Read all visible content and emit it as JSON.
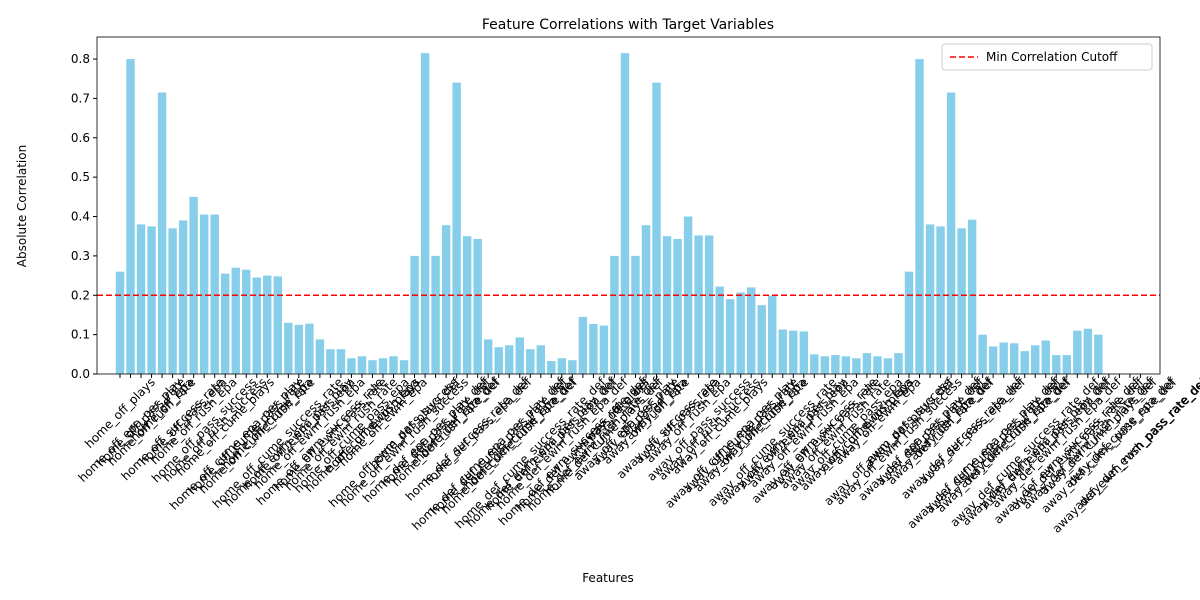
{
  "chart_data": {
    "type": "bar",
    "title": "Feature Correlations with Target Variables",
    "x_label": "Features",
    "y_label": "Absolute Correlation",
    "color": "#87ceeb",
    "categories": [
      "home_off_plays",
      "home_off_epa_per_play",
      "home_off_pass_rate",
      "home_off_rush_rate",
      "home_off_epa",
      "home_off_success_rate",
      "home_off_pass_epa",
      "home_off_rush_epa",
      "home_off_pass_success",
      "home_off_rush_success",
      "home_off_cume_plays",
      "home_off_cume_epa_per_play",
      "home_off_cume_pass_rate",
      "home_off_cume_rush_rate",
      "home_off_cume_epa",
      "home_off_cume_success_rate",
      "home_off_ewm_epa_per_play",
      "home_off_ewm_pass_epa",
      "home_off_ewm_rush_epa",
      "home_off_ewm_success_rate",
      "home_off_ewm_pass_rate",
      "home_off_ewm_rush_rate",
      "home_off_cume_pass_epa",
      "home_off_cume_rush_epa",
      "home_off_ewm_plays",
      "home_off_ewm_epa",
      "home_off_ewm_pass_success",
      "home_off_ewm_rush_success",
      "home_def_plays_def",
      "home_def_epa_per_play_def",
      "home_def_pass_rate_def",
      "home_def_rush_rate_def",
      "home_def_epa_def",
      "home_def_success_rate_def",
      "home_def_pass_epa_def",
      "home_def_cume_epa_per_play_def",
      "home_def_cume_pass_rate_def",
      "home_def_cume_rush_rate_def",
      "home_def_cume_epa_def",
      "home_def_cume_success_rate_def",
      "home_def_ewm_epa_per_play_def",
      "home_def_ewm_pass_epa_def",
      "home_def_ewm_rush_epa_def",
      "home_def_ewm_success_rate_def",
      "home_def_ewm_pass_rate_def",
      "home_def_ewm_rush_rate_def",
      "home_def_cume_plays_def",
      "away_off_plays",
      "away_off_epa_per_play",
      "away_off_pass_rate",
      "away_off_rush_rate",
      "away_off_epa",
      "away_off_success_rate",
      "away_off_pass_epa",
      "away_off_rush_epa",
      "away_off_pass_success",
      "away_off_rush_success",
      "away_off_cume_plays",
      "away_off_cume_epa_per_play",
      "away_off_cume_pass_rate",
      "away_off_cume_rush_rate",
      "away_off_cume_epa",
      "away_off_cume_success_rate",
      "away_off_ewm_epa_per_play",
      "away_off_ewm_pass_epa",
      "away_off_ewm_rush_epa",
      "away_off_ewm_success_rate",
      "away_off_ewm_pass_rate",
      "away_off_ewm_rush_rate",
      "away_off_cume_pass_epa",
      "away_off_cume_rush_epa",
      "away_off_ewm_plays",
      "away_off_ewm_epa",
      "away_off_ewm_pass_success",
      "away_off_ewm_rush_success",
      "away_def_plays_def",
      "away_def_epa_per_play_def",
      "away_def_pass_rate_def",
      "away_def_rush_rate_def",
      "away_def_epa_def",
      "away_def_success_rate_def",
      "away_def_pass_epa_def",
      "away_def_cume_epa_per_play_def",
      "away_def_cume_pass_rate_def",
      "away_def_cume_rush_rate_def",
      "away_def_cume_epa_def",
      "away_def_cume_success_rate_def",
      "away_def_ewm_epa_per_play_def",
      "away_def_ewm_pass_epa_def",
      "away_def_ewm_rush_epa_def",
      "away_def_ewm_success_rate_def",
      "away_def_ewm_pass_rate_def",
      "away_def_ewm_rush_rate_def",
      "away_def_cume_plays_def",
      "away_def_cume_pass_rate_def",
      "away_def_cume_epa_def",
      "away_def_ewm_rush_pass_rate_def",
      "away_def_ewm_pass_rate_def"
    ],
    "values": [
      0.26,
      0.8,
      0.38,
      0.375,
      0.715,
      0.37,
      0.39,
      0.45,
      0.405,
      0.405,
      0.255,
      0.27,
      0.265,
      0.245,
      0.25,
      0.248,
      0.13,
      0.125,
      0.128,
      0.088,
      0.063,
      0.063,
      0.04,
      0.045,
      0.035,
      0.04,
      0.045,
      0.035,
      0.3,
      0.815,
      0.3,
      0.378,
      0.74,
      0.35,
      0.343,
      0.088,
      0.068,
      0.073,
      0.093,
      0.063,
      0.073,
      0.033,
      0.04,
      0.035,
      0.145,
      0.127,
      0.123,
      0.3,
      0.815,
      0.3,
      0.378,
      0.74,
      0.35,
      0.343,
      0.4,
      0.352,
      0.352,
      0.222,
      0.19,
      0.207,
      0.22,
      0.175,
      0.198,
      0.113,
      0.11,
      0.108,
      0.05,
      0.045,
      0.048,
      0.045,
      0.04,
      0.053,
      0.045,
      0.04,
      0.053,
      0.26,
      0.8,
      0.38,
      0.375,
      0.715,
      0.37,
      0.392,
      0.1,
      0.07,
      0.08,
      0.078,
      0.058,
      0.073,
      0.085,
      0.048,
      0.048,
      0.11,
      0.115,
      0.1,
      0,
      0,
      0,
      0
    ],
    "ylim": [
      0,
      0.856
    ],
    "yticks": [
      {
        "value": 0,
        "label": "0.0"
      },
      0.1,
      0.2,
      0.3,
      0.4,
      0.5,
      0.6,
      0.7,
      0.8
    ],
    "cutoff": {
      "value": 0.2,
      "label": "Min Correlation Cutoff",
      "color": "#ff0000"
    },
    "legend": "upper right"
  }
}
